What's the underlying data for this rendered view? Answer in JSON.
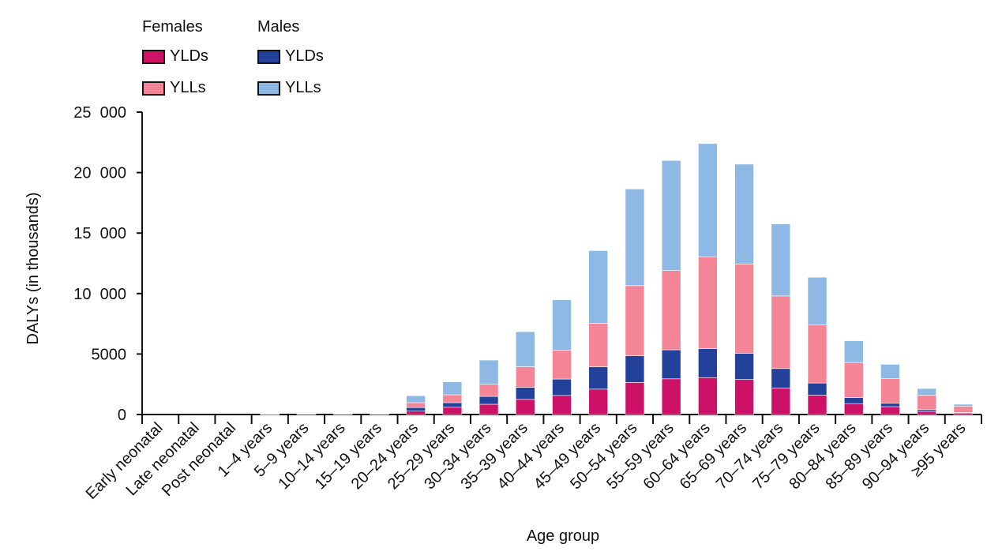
{
  "legend": {
    "females_title": "Females",
    "males_title": "Males",
    "items": {
      "female_ylds": "YLDs",
      "female_ylls": "YLLs",
      "male_ylds": "YLDs",
      "male_ylls": "YLLs"
    }
  },
  "chart_data": {
    "type": "bar",
    "stacked": true,
    "ylabel": "DALYs (in thousands)",
    "xlabel": "Age group",
    "ylim": [
      0,
      25000
    ],
    "yticks": [
      "0",
      "5000",
      "10  000",
      "15  000",
      "20  000",
      "25  000"
    ],
    "ytick_values": [
      0,
      5000,
      10000,
      15000,
      20000,
      25000
    ],
    "categories": [
      "Early neonatal",
      "Late neonatal",
      "Post neonatal",
      "1–4 years",
      "5–9 years",
      "10–14 years",
      "15–19 years",
      "20–24 years",
      "25–29 years",
      "30–34 years",
      "35–39 years",
      "40–44 years",
      "45–49 years",
      "50–54 years",
      "55–59 years",
      "60–64 years",
      "65–69 years",
      "70–74 years",
      "75–79 years",
      "80–84 years",
      "85–89 years",
      "90–94 years",
      "≥95 years"
    ],
    "series": [
      {
        "name": "Females YLDs",
        "color": "#cc1166",
        "values": [
          0,
          0,
          0,
          20,
          40,
          40,
          40,
          280,
          600,
          850,
          1250,
          1580,
          2100,
          2650,
          2950,
          3050,
          2900,
          2200,
          1600,
          900,
          650,
          250,
          120
        ]
      },
      {
        "name": "Males YLDs",
        "color": "#23409a",
        "values": [
          0,
          0,
          0,
          30,
          50,
          50,
          50,
          300,
          380,
          650,
          1000,
          1350,
          1850,
          2200,
          2400,
          2400,
          2150,
          1600,
          1000,
          500,
          280,
          150,
          50
        ]
      },
      {
        "name": "Females YLLs",
        "color": "#f48597",
        "values": [
          0,
          0,
          0,
          20,
          20,
          20,
          20,
          400,
          650,
          1000,
          1700,
          2400,
          3600,
          5800,
          6550,
          7600,
          7400,
          6000,
          4800,
          2900,
          2050,
          1200,
          520
        ]
      },
      {
        "name": "Males YLLs",
        "color": "#8eb9e4",
        "values": [
          0,
          0,
          0,
          30,
          50,
          40,
          40,
          570,
          1070,
          2000,
          2900,
          4150,
          6000,
          8000,
          9100,
          9350,
          8250,
          5950,
          3950,
          1800,
          1170,
          550,
          160
        ]
      }
    ]
  }
}
